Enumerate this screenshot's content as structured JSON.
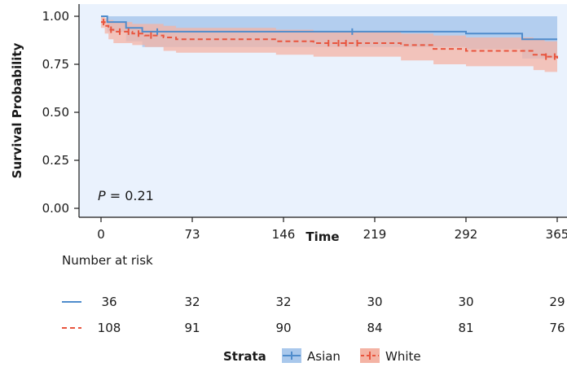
{
  "chart_data": {
    "type": "line",
    "subtype": "kaplan-meier",
    "title": "",
    "xlabel": "Time",
    "ylabel": "Survival Probability",
    "xlim": [
      0,
      365
    ],
    "ylim": [
      0,
      1
    ],
    "x_ticks": [
      0,
      73,
      146,
      219,
      292,
      365
    ],
    "y_ticks": [
      "0.00",
      "0.25",
      "0.50",
      "0.75",
      "1.00"
    ],
    "p_value_label": "P",
    "p_value_text": " = 0.21",
    "legend": {
      "title": "Strata",
      "position": "bottom"
    },
    "series": [
      {
        "name": "Asian",
        "color": "#4f8ccc",
        "band_color": "#a9c8ec",
        "line_style": "solid",
        "steps": [
          [
            0,
            1.0
          ],
          [
            5,
            0.97
          ],
          [
            20,
            0.94
          ],
          [
            33,
            0.92
          ],
          [
            45,
            0.92
          ],
          [
            100,
            0.92
          ],
          [
            146,
            0.92
          ],
          [
            219,
            0.92
          ],
          [
            292,
            0.91
          ],
          [
            337,
            0.88
          ],
          [
            365,
            0.88
          ]
        ],
        "band": [
          [
            0,
            1.0,
            1.0
          ],
          [
            5,
            1.0,
            0.92
          ],
          [
            20,
            1.0,
            0.87
          ],
          [
            33,
            1.0,
            0.84
          ],
          [
            146,
            1.0,
            0.84
          ],
          [
            292,
            1.0,
            0.83
          ],
          [
            337,
            1.0,
            0.78
          ],
          [
            365,
            1.0,
            0.78
          ]
        ],
        "censor_times": [
          45,
          201
        ]
      },
      {
        "name": "White",
        "color": "#e8553e",
        "band_color": "#f4b3a4",
        "line_style": "dashed",
        "steps": [
          [
            0,
            0.97
          ],
          [
            3,
            0.95
          ],
          [
            6,
            0.93
          ],
          [
            10,
            0.92
          ],
          [
            25,
            0.91
          ],
          [
            35,
            0.9
          ],
          [
            50,
            0.89
          ],
          [
            60,
            0.88
          ],
          [
            90,
            0.88
          ],
          [
            110,
            0.88
          ],
          [
            140,
            0.87
          ],
          [
            170,
            0.86
          ],
          [
            240,
            0.85
          ],
          [
            266,
            0.83
          ],
          [
            292,
            0.82
          ],
          [
            320,
            0.82
          ],
          [
            346,
            0.8
          ],
          [
            355,
            0.79
          ],
          [
            365,
            0.78
          ]
        ],
        "band": [
          [
            0,
            1.0,
            0.94
          ],
          [
            3,
            0.99,
            0.91
          ],
          [
            6,
            0.98,
            0.88
          ],
          [
            10,
            0.97,
            0.86
          ],
          [
            25,
            0.96,
            0.85
          ],
          [
            35,
            0.96,
            0.84
          ],
          [
            50,
            0.95,
            0.82
          ],
          [
            60,
            0.94,
            0.81
          ],
          [
            140,
            0.93,
            0.8
          ],
          [
            170,
            0.92,
            0.79
          ],
          [
            240,
            0.91,
            0.77
          ],
          [
            266,
            0.9,
            0.75
          ],
          [
            292,
            0.89,
            0.74
          ],
          [
            320,
            0.89,
            0.74
          ],
          [
            346,
            0.88,
            0.72
          ],
          [
            355,
            0.87,
            0.71
          ],
          [
            365,
            0.86,
            0.7
          ]
        ],
        "censor_times": [
          2,
          8,
          15,
          22,
          30,
          40,
          182,
          190,
          196,
          205,
          356,
          363
        ]
      }
    ],
    "risk_table": {
      "title": "Number at risk",
      "times": [
        0,
        73,
        146,
        219,
        292,
        365
      ],
      "rows": [
        {
          "name": "Asian",
          "values": [
            "36",
            "32",
            "32",
            "30",
            "30",
            "29"
          ]
        },
        {
          "name": "White",
          "values": [
            "108",
            "91",
            "90",
            "84",
            "81",
            "76"
          ]
        }
      ]
    }
  }
}
